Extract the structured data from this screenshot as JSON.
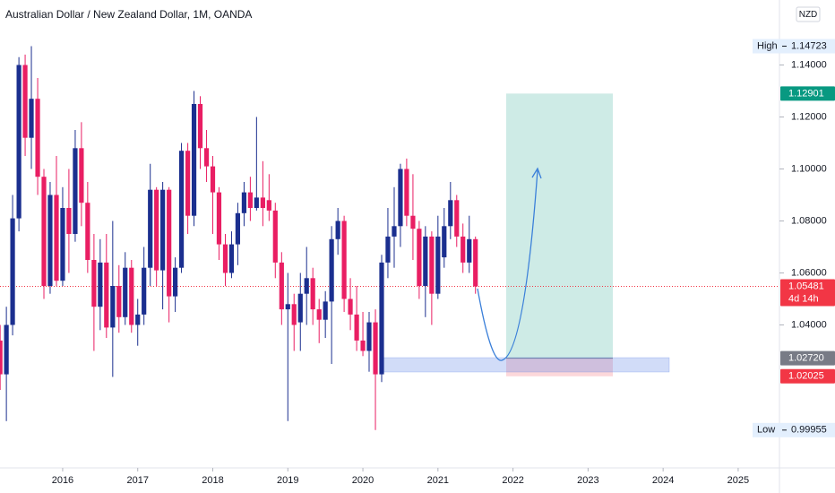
{
  "chart_data": {
    "type": "candlestick",
    "title": "Australian Dollar / New Zealand Dollar, 1M, OANDA",
    "currency": "NZD",
    "up_color": "#1b2f8f",
    "down_color": "#e91e63",
    "x": [
      2015.167,
      2015.25,
      2015.333,
      2015.417,
      2015.5,
      2015.583,
      2015.667,
      2015.75,
      2015.833,
      2015.917,
      2016,
      2016.083,
      2016.167,
      2016.25,
      2016.333,
      2016.417,
      2016.5,
      2016.583,
      2016.667,
      2016.75,
      2016.833,
      2016.917,
      2017,
      2017.083,
      2017.167,
      2017.25,
      2017.333,
      2017.417,
      2017.5,
      2017.583,
      2017.667,
      2017.75,
      2017.833,
      2017.917,
      2018,
      2018.083,
      2018.167,
      2018.25,
      2018.333,
      2018.417,
      2018.5,
      2018.583,
      2018.667,
      2018.75,
      2018.833,
      2018.917,
      2019,
      2019.083,
      2019.167,
      2019.25,
      2019.333,
      2019.417,
      2019.5,
      2019.583,
      2019.667,
      2019.75,
      2019.833,
      2019.917,
      2020,
      2020.083,
      2020.167,
      2020.25,
      2020.333,
      2020.417,
      2020.5,
      2020.583,
      2020.667,
      2020.75,
      2020.833,
      2020.917,
      2021,
      2021.083,
      2021.167,
      2021.25,
      2021.333,
      2021.417,
      2021.5
    ],
    "open": [
      1.034,
      1.021,
      1.04,
      1.081,
      1.14,
      1.112,
      1.127,
      1.097,
      1.055,
      1.09,
      1.057,
      1.085,
      1.075,
      1.108,
      1.087,
      1.065,
      1.047,
      1.064,
      1.039,
      1.055,
      1.043,
      1.062,
      1.04,
      1.044,
      1.062,
      1.092,
      1.061,
      1.092,
      1.051,
      1.062,
      1.107,
      1.082,
      1.125,
      1.108,
      1.101,
      1.091,
      1.071,
      1.06,
      1.071,
      1.083,
      1.091,
      1.085,
      1.089,
      1.088,
      1.084,
      1.064,
      1.046,
      1.048,
      1.041,
      1.052,
      1.058,
      1.046,
      1.042,
      1.049,
      1.073,
      1.08,
      1.05,
      1.044,
      1.034,
      1.03,
      1.041,
      1.021,
      1.064,
      1.074,
      1.078,
      1.1,
      1.082,
      1.077,
      1.055,
      1.074,
      1.052,
      1.066,
      1.078,
      1.088,
      1.074,
      1.064,
      1.073
    ],
    "high": [
      1.04,
      1.047,
      1.09,
      1.143,
      1.144,
      1.14723,
      1.135,
      1.1,
      1.095,
      1.105,
      1.093,
      1.1,
      1.115,
      1.118,
      1.095,
      1.075,
      1.073,
      1.075,
      1.08,
      1.063,
      1.068,
      1.065,
      1.05,
      1.07,
      1.102,
      1.093,
      1.095,
      1.093,
      1.066,
      1.11,
      1.11,
      1.13,
      1.128,
      1.115,
      1.105,
      1.093,
      1.075,
      1.076,
      1.087,
      1.095,
      1.097,
      1.12,
      1.103,
      1.098,
      1.087,
      1.068,
      1.06,
      1.052,
      1.06,
      1.07,
      1.062,
      1.05,
      1.053,
      1.078,
      1.085,
      1.082,
      1.058,
      1.055,
      1.045,
      1.045,
      1.046,
      1.067,
      1.085,
      1.093,
      1.102,
      1.104,
      1.098,
      1.08,
      1.078,
      1.076,
      1.082,
      1.085,
      1.095,
      1.09,
      1.079,
      1.082,
      1.074
    ],
    "low": [
      1.015,
      1.003,
      1.036,
      1.076,
      1.105,
      1.1,
      1.09,
      1.05,
      1.052,
      1.055,
      1.055,
      1.06,
      1.072,
      1.078,
      1.06,
      1.03,
      1.038,
      1.035,
      1.02,
      1.037,
      1.04,
      1.037,
      1.032,
      1.04,
      1.055,
      1.055,
      1.046,
      1.041,
      1.045,
      1.06,
      1.075,
      1.078,
      1.1,
      1.095,
      1.075,
      1.065,
      1.055,
      1.058,
      1.063,
      1.078,
      1.08,
      1.084,
      1.078,
      1.08,
      1.058,
      1.04,
      1.003,
      1.03,
      1.03,
      1.04,
      1.04,
      1.033,
      1.035,
      1.025,
      1.067,
      1.045,
      1.038,
      1.03,
      1.028,
      1.022,
      0.99955,
      1.018,
      1.058,
      1.062,
      1.07,
      1.078,
      1.065,
      1.05,
      1.043,
      1.04,
      1.05,
      1.062,
      1.073,
      1.07,
      1.06,
      1.06,
      1.052
    ],
    "close": [
      1.021,
      1.04,
      1.081,
      1.14,
      1.112,
      1.127,
      1.097,
      1.055,
      1.09,
      1.057,
      1.085,
      1.075,
      1.108,
      1.087,
      1.065,
      1.047,
      1.064,
      1.039,
      1.055,
      1.043,
      1.062,
      1.04,
      1.044,
      1.062,
      1.092,
      1.061,
      1.092,
      1.051,
      1.062,
      1.107,
      1.082,
      1.125,
      1.108,
      1.101,
      1.091,
      1.071,
      1.06,
      1.071,
      1.083,
      1.091,
      1.085,
      1.089,
      1.085,
      1.084,
      1.064,
      1.046,
      1.048,
      1.04,
      1.052,
      1.058,
      1.046,
      1.042,
      1.049,
      1.073,
      1.08,
      1.05,
      1.044,
      1.034,
      1.03,
      1.041,
      1.021,
      1.064,
      1.074,
      1.078,
      1.1,
      1.082,
      1.077,
      1.055,
      1.074,
      1.052,
      1.074,
      1.078,
      1.088,
      1.074,
      1.064,
      1.073,
      1.05481
    ],
    "xlim": [
      2015.165,
      2025.55
    ],
    "xticks": [
      2016,
      2017,
      2018,
      2019,
      2020,
      2021,
      2022,
      2023,
      2024,
      2025
    ],
    "ylim": [
      0.985,
      1.165
    ],
    "yticks": [
      {
        "value": 1.14,
        "label": "1.14000"
      },
      {
        "value": 1.12,
        "label": "1.12000"
      },
      {
        "value": 1.1,
        "label": "1.10000"
      },
      {
        "value": 1.08,
        "label": "1.08000"
      },
      {
        "value": 1.06,
        "label": "1.06000"
      },
      {
        "value": 1.04,
        "label": "1.04000"
      }
    ],
    "extremes": [
      {
        "name": "High",
        "value": 1.14723
      },
      {
        "name": "Low",
        "value": 0.99955
      }
    ],
    "price_tags": [
      {
        "value": 1.12901,
        "color": "#089981"
      },
      {
        "value": 1.05481,
        "countdown": "4d 14h",
        "color": "#f23645"
      },
      {
        "value": 1.0272,
        "label": "1.02720",
        "color": "#787b86"
      },
      {
        "value": 1.02025,
        "color": "#f23645"
      }
    ]
  }
}
